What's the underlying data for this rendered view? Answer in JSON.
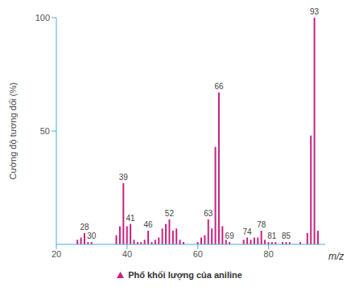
{
  "chart_data": {
    "type": "bar",
    "title": "Phổ khối lượng của aniline",
    "x_label": "m/z",
    "y_label": "Cường độ tương đối (%)",
    "x": [
      26,
      27,
      28,
      29,
      30,
      37,
      38,
      39,
      40,
      41,
      42,
      43,
      44,
      45,
      46,
      47,
      48,
      49,
      50,
      51,
      52,
      53,
      54,
      55,
      56,
      60,
      61,
      62,
      63,
      64,
      65,
      66,
      67,
      68,
      69,
      73,
      74,
      75,
      76,
      77,
      78,
      79,
      80,
      81,
      82,
      84,
      85,
      86,
      89,
      91,
      92,
      93,
      94
    ],
    "values": [
      2,
      3,
      5,
      1,
      1,
      4,
      8,
      27,
      8,
      9,
      2,
      1,
      1,
      2,
      6,
      1,
      2,
      3,
      7,
      9,
      11,
      6,
      7,
      2,
      1,
      1,
      3,
      4,
      11,
      7,
      43,
      67,
      8,
      2,
      1,
      2,
      3,
      2,
      3,
      3,
      6,
      2,
      1,
      1,
      1,
      1,
      1,
      1,
      1,
      5,
      48,
      100,
      6
    ],
    "labeled_peaks": [
      28,
      30,
      39,
      41,
      46,
      52,
      63,
      66,
      69,
      74,
      78,
      81,
      85,
      93
    ],
    "color": "#c8217f",
    "xlim": [
      20,
      96
    ],
    "xticks": [
      20,
      40,
      60,
      80
    ],
    "ylim": [
      0,
      100
    ],
    "yticks": [
      50,
      100
    ],
    "grid": false
  }
}
